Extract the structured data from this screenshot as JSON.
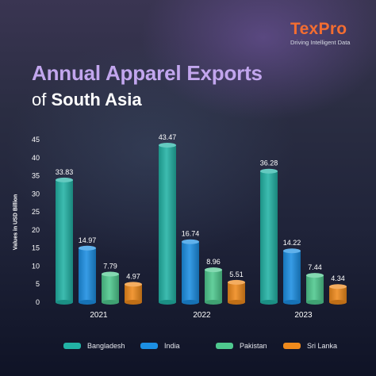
{
  "brand": {
    "name": "TexPro",
    "tagline": "Driving Intelligent Data"
  },
  "title": {
    "line1": "Annual Apparel Exports",
    "line2_prefix": "of",
    "line2_bold": "South Asia"
  },
  "colors": {
    "Bangladesh": "#22b3a5",
    "India": "#1c8fe3",
    "Pakistan": "#4fc98f",
    "Sri Lanka": "#ef8a1c",
    "accent": "#f36d31",
    "title": "#c2a6ee"
  },
  "chart_data": {
    "type": "bar",
    "categories": [
      "2021",
      "2022",
      "2023"
    ],
    "series": [
      {
        "name": "Bangladesh",
        "values": [
          33.83,
          43.47,
          36.28
        ]
      },
      {
        "name": "India",
        "values": [
          14.97,
          16.74,
          14.22
        ]
      },
      {
        "name": "Pakistan",
        "values": [
          7.79,
          8.96,
          7.44
        ]
      },
      {
        "name": "Sri Lanka",
        "values": [
          4.97,
          5.51,
          4.34
        ]
      }
    ],
    "ylabel": "Values in USD Billion",
    "ylim": [
      0,
      45
    ],
    "yticks": [
      0,
      5,
      10,
      15,
      20,
      25,
      30,
      35,
      40,
      45
    ],
    "grid": false,
    "legend": "bottom",
    "data_labels": true
  }
}
